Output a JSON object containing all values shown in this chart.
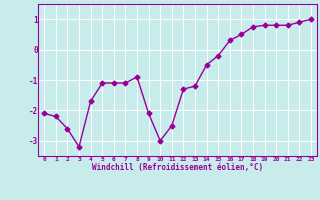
{
  "x": [
    0,
    1,
    2,
    3,
    4,
    5,
    6,
    7,
    8,
    9,
    10,
    11,
    12,
    13,
    14,
    15,
    16,
    17,
    18,
    19,
    20,
    21,
    22,
    23
  ],
  "y": [
    -2.1,
    -2.2,
    -2.6,
    -3.2,
    -1.7,
    -1.1,
    -1.1,
    -1.1,
    -0.9,
    -2.1,
    -3.0,
    -2.5,
    -1.3,
    -1.2,
    -0.5,
    -0.2,
    0.3,
    0.5,
    0.75,
    0.8,
    0.8,
    0.8,
    0.9,
    1.0
  ],
  "line_color": "#990099",
  "marker": "D",
  "marker_size": 2.5,
  "bg_color": "#c8ecec",
  "grid_color": "#aadddd",
  "xlabel": "Windchill (Refroidissement éolien,°C)",
  "tick_color": "#990099",
  "ylim": [
    -3.5,
    1.5
  ],
  "xlim": [
    -0.5,
    23.5
  ],
  "yticks": [
    -3,
    -2,
    -1,
    0,
    1
  ],
  "xticks": [
    0,
    1,
    2,
    3,
    4,
    5,
    6,
    7,
    8,
    9,
    10,
    11,
    12,
    13,
    14,
    15,
    16,
    17,
    18,
    19,
    20,
    21,
    22,
    23
  ],
  "spine_color": "#990099",
  "fig_bg": "#c8ecec",
  "grid_color_actual": "#ffffff"
}
